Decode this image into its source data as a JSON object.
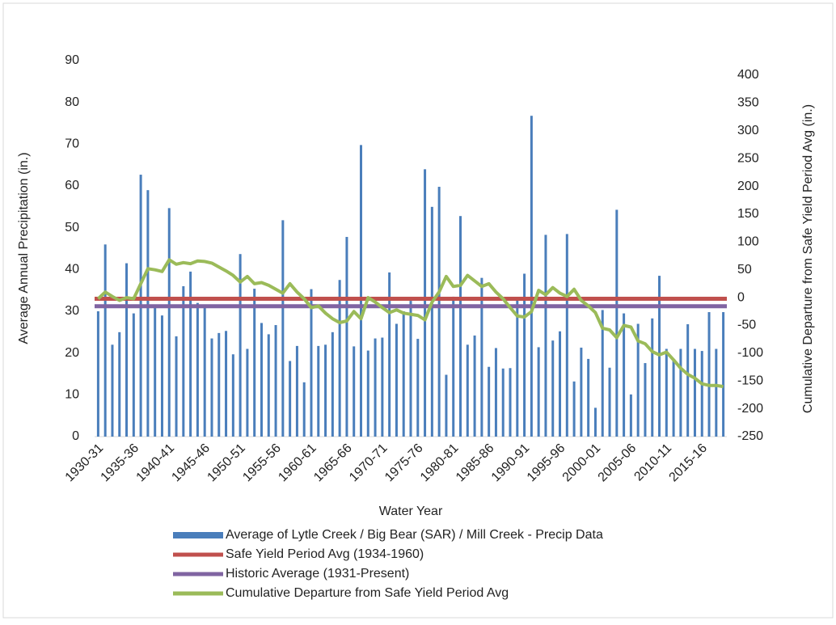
{
  "chart_data": {
    "type": "bar",
    "xlabel": "Water Year",
    "ylabel": "Average Annual Precipitation (in.)",
    "y2label": "Cumulative Departure from Safe Yield Period Avg (in.)",
    "categories": [
      "1930-31",
      null,
      null,
      null,
      null,
      "1935-36",
      null,
      null,
      null,
      null,
      "1940-41",
      null,
      null,
      null,
      null,
      "1945-46",
      null,
      null,
      null,
      null,
      "1950-51",
      null,
      null,
      null,
      null,
      "1955-56",
      null,
      null,
      null,
      null,
      "1960-61",
      null,
      null,
      null,
      null,
      "1965-66",
      null,
      null,
      null,
      null,
      "1970-71",
      null,
      null,
      null,
      null,
      "1975-76",
      null,
      null,
      null,
      null,
      "1980-81",
      null,
      null,
      null,
      null,
      "1985-86",
      null,
      null,
      null,
      null,
      "1990-91",
      null,
      null,
      null,
      null,
      "1995-96",
      null,
      null,
      null,
      null,
      "2000-01",
      null,
      null,
      null,
      null,
      "2005-06",
      null,
      null,
      null,
      null,
      "2010-11",
      null,
      null,
      null,
      null,
      "2015-16",
      null,
      null,
      null
    ],
    "ylim": [
      0,
      90
    ],
    "yticks": [
      0,
      10,
      20,
      30,
      40,
      50,
      60,
      70,
      80,
      90
    ],
    "y2lim": [
      -250,
      400
    ],
    "y2ticks": [
      -250,
      -200,
      -150,
      -100,
      -50,
      0,
      50,
      100,
      150,
      200,
      250,
      300,
      350,
      400
    ],
    "series": [
      {
        "name": "Average of Lytle Creek / Big Bear (SAR) / Mill Creek - Precip Data",
        "type": "bar",
        "color": "#4a7ebb",
        "values": [
          30,
          46,
          22,
          25,
          41.5,
          29.5,
          62.7,
          59,
          31,
          29,
          54.7,
          24,
          36,
          39.5,
          32,
          31,
          23.5,
          24.8,
          25.3,
          19.7,
          43.7,
          21,
          35.4,
          27.2,
          24.5,
          26.7,
          51.8,
          18.1,
          21.7,
          13,
          35.3,
          21.7,
          22,
          25,
          37.5,
          47.8,
          21.6,
          69.8,
          20.6,
          23.5,
          23.7,
          39.3,
          27,
          30,
          32.5,
          23.4,
          64,
          55,
          59.8,
          14.8,
          33.5,
          52.8,
          22,
          24.2,
          38,
          16.7,
          21.2,
          16.3,
          16.4,
          33,
          39,
          76.8,
          21.4,
          48.3,
          23,
          25.2,
          48.5,
          13.2,
          21.3,
          18.6,
          6.9,
          30.3,
          16.5,
          54.3,
          29.5,
          10.1,
          27,
          17.6,
          28.3,
          38.5,
          21,
          18.1,
          21,
          26.9,
          21,
          20.5,
          29.8,
          21,
          29.8
        ]
      },
      {
        "name": "Safe Yield Period Avg (1934-1960)",
        "type": "hline",
        "color": "#c0504d",
        "value": 33
      },
      {
        "name": "Historic Average (1931-Present)",
        "type": "hline",
        "color": "#8064a2",
        "value": 31.2
      },
      {
        "name": "Cumulative Departure from Safe Yield Period Avg",
        "type": "line",
        "axis": "y2",
        "color": "#9bbb59",
        "values": [
          -2,
          10,
          2,
          -5,
          0,
          -2,
          25,
          52,
          50,
          47,
          68,
          60,
          63,
          61,
          66,
          65,
          62,
          55,
          48,
          40,
          28,
          38,
          25,
          27,
          22,
          15,
          8,
          25,
          10,
          -2,
          -18,
          -15,
          -28,
          -38,
          -45,
          -42,
          -25,
          -38,
          0,
          -8,
          -18,
          -27,
          -22,
          -28,
          -30,
          -32,
          -40,
          -8,
          10,
          38,
          20,
          22,
          40,
          30,
          20,
          25,
          10,
          -2,
          -18,
          -33,
          -35,
          -25,
          13,
          5,
          18,
          8,
          2,
          15,
          -5,
          -15,
          -27,
          -55,
          -58,
          -72,
          -50,
          -53,
          -78,
          -83,
          -97,
          -103,
          -98,
          -112,
          -127,
          -138,
          -145,
          -155,
          -158,
          -158,
          -160
        ]
      }
    ]
  }
}
